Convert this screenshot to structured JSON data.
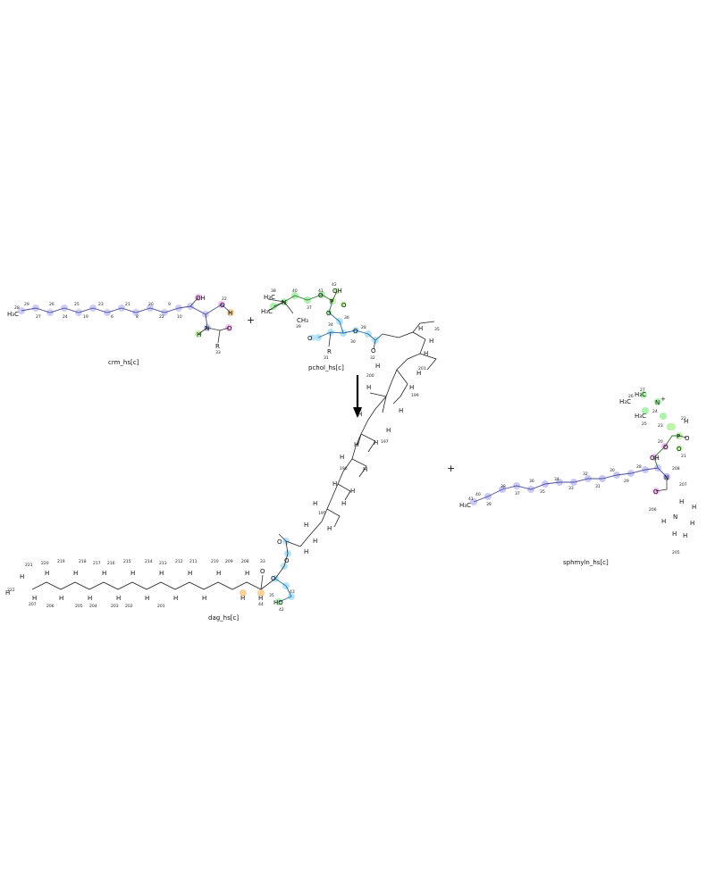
{
  "reactants": [
    {
      "name": "crm_hs[c]"
    },
    {
      "name": "pchol_hs[c]"
    }
  ],
  "products": [
    {
      "name": "dag_hs[c]"
    },
    {
      "name": "sphmyln_hs[c]"
    }
  ],
  "operators": {
    "plus": "+"
  },
  "atoms": {
    "h3c": "H₃C",
    "ch3": "CH₃",
    "oh": "OH",
    "ho": "HO",
    "h": "H",
    "r": "R",
    "o": "O",
    "n": "N",
    "p": "P",
    "plus": "+",
    "minus": "−"
  },
  "highlight_colors": {
    "carbon_chain": "#c9c9f5",
    "nitrogen": "#b9b9f0",
    "oxygen": "#f2b9f2",
    "phosphate": "#bff5a8",
    "choline": "#aef0ae",
    "glycerol": "#b6e3f5",
    "hydrogen_exchange": "#f5d39a"
  },
  "index_labels": {
    "crm_chain": [
      "28",
      "29",
      "27",
      "26",
      "24",
      "25",
      "19",
      "23",
      "6",
      "21",
      "8",
      "20",
      "22",
      "9",
      "10",
      "22",
      "33"
    ],
    "pchol": [
      "38",
      "42",
      "40",
      "41",
      "39",
      "37",
      "36",
      "34",
      "31",
      "30",
      "28",
      "32",
      "35",
      "201",
      "200",
      "199",
      "198",
      "197",
      "196",
      "195"
    ],
    "dag_chain": [
      "222",
      "221",
      "220",
      "219",
      "218",
      "217",
      "216",
      "215",
      "214",
      "213",
      "212",
      "211",
      "210",
      "209",
      "208",
      "207",
      "206",
      "205",
      "204",
      "203",
      "202",
      "201",
      "33",
      "35",
      "44",
      "43",
      "42"
    ],
    "sphmyln": [
      "41",
      "40",
      "39",
      "38",
      "37",
      "36",
      "35",
      "34",
      "33",
      "32",
      "31",
      "30",
      "29",
      "28",
      "27",
      "26",
      "25",
      "24",
      "23",
      "22",
      "21",
      "20",
      "208",
      "207",
      "206",
      "205"
    ]
  }
}
